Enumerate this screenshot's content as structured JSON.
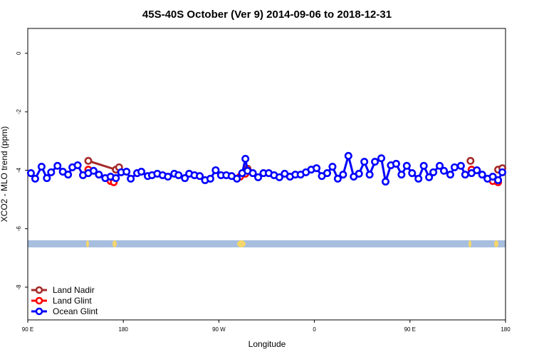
{
  "chart_data": {
    "type": "line",
    "title": "45S-40S October (Ver 9)   2014-09-06 to 2018-12-31",
    "xlabel": "Longitude",
    "ylabel": "XCO2 - MLO trend (ppm)",
    "xlim": [
      90,
      540
    ],
    "xticks": [
      {
        "value": 90,
        "label": "90 E"
      },
      {
        "value": 180,
        "label": "180"
      },
      {
        "value": 270,
        "label": "90 W"
      },
      {
        "value": 360,
        "label": "0"
      },
      {
        "value": 450,
        "label": "90 E"
      },
      {
        "value": 540,
        "label": "180"
      }
    ],
    "ylim": [
      -9.12,
      0.85
    ],
    "yticks": [
      0,
      -2,
      -4,
      -6,
      -8
    ],
    "legend": "bottom-left",
    "series": [
      {
        "name": "Land Nadir",
        "color": "#a52a2a",
        "x": [
          147,
          173,
          176,
          null,
          297,
          null,
          507,
          null,
          533,
          537
        ],
        "values": [
          -3.68,
          -3.98,
          -3.9,
          null,
          -3.95,
          null,
          -3.68,
          null,
          -3.98,
          -3.93
        ]
      },
      {
        "name": "Land Glint",
        "color": "#ff0000",
        "x": [
          147,
          168,
          171,
          null,
          290,
          295,
          null,
          508,
          null,
          528,
          533
        ],
        "values": [
          -3.98,
          -4.37,
          -4.41,
          null,
          -4.22,
          -4.12,
          null,
          -3.98,
          null,
          -4.37,
          -4.41
        ]
      },
      {
        "name": "Ocean Glint",
        "color": "#0000ff",
        "x": [
          93,
          97,
          103,
          108,
          112,
          118,
          123,
          128,
          132,
          137,
          142,
          147,
          152,
          157,
          163,
          168,
          173,
          178,
          183,
          187,
          193,
          197,
          203,
          207,
          212,
          217,
          222,
          228,
          232,
          238,
          242,
          247,
          252,
          257,
          262,
          267,
          272,
          277,
          282,
          287,
          292,
          295,
          297,
          302,
          307,
          312,
          317,
          322,
          327,
          332,
          337,
          342,
          347,
          352,
          357,
          362,
          367,
          372,
          377,
          382,
          387,
          392,
          397,
          402,
          407,
          412,
          417,
          423,
          427,
          432,
          437,
          442,
          447,
          452,
          458,
          463,
          468,
          472,
          478,
          482,
          488,
          492,
          498,
          502,
          508,
          513,
          518,
          523,
          528,
          533,
          537
        ],
        "values": [
          -4.1,
          -4.29,
          -3.88,
          -4.27,
          -4.07,
          -3.85,
          -4.05,
          -4.15,
          -3.9,
          -3.83,
          -4.17,
          -4.1,
          -4.02,
          -4.15,
          -4.27,
          -4.22,
          -4.27,
          -4.07,
          -4.05,
          -4.29,
          -4.1,
          -4.05,
          -4.2,
          -4.17,
          -4.12,
          -4.17,
          -4.22,
          -4.12,
          -4.17,
          -4.27,
          -4.12,
          -4.17,
          -4.2,
          -4.34,
          -4.29,
          -4.0,
          -4.17,
          -4.17,
          -4.2,
          -4.29,
          -4.1,
          -3.61,
          -4.02,
          -4.1,
          -4.24,
          -4.1,
          -4.1,
          -4.17,
          -4.24,
          -4.12,
          -4.22,
          -4.15,
          -4.15,
          -4.07,
          -3.98,
          -3.93,
          -4.2,
          -4.1,
          -3.88,
          -4.29,
          -4.15,
          -3.51,
          -4.22,
          -4.12,
          -3.71,
          -4.15,
          -3.71,
          -3.59,
          -4.39,
          -3.83,
          -3.78,
          -4.15,
          -3.85,
          -4.1,
          -4.29,
          -3.85,
          -4.24,
          -4.07,
          -3.85,
          -4.02,
          -4.15,
          -3.9,
          -3.85,
          -4.15,
          -4.1,
          -4.0,
          -4.15,
          -4.29,
          -4.22,
          -4.34,
          -4.07
        ]
      }
    ]
  }
}
